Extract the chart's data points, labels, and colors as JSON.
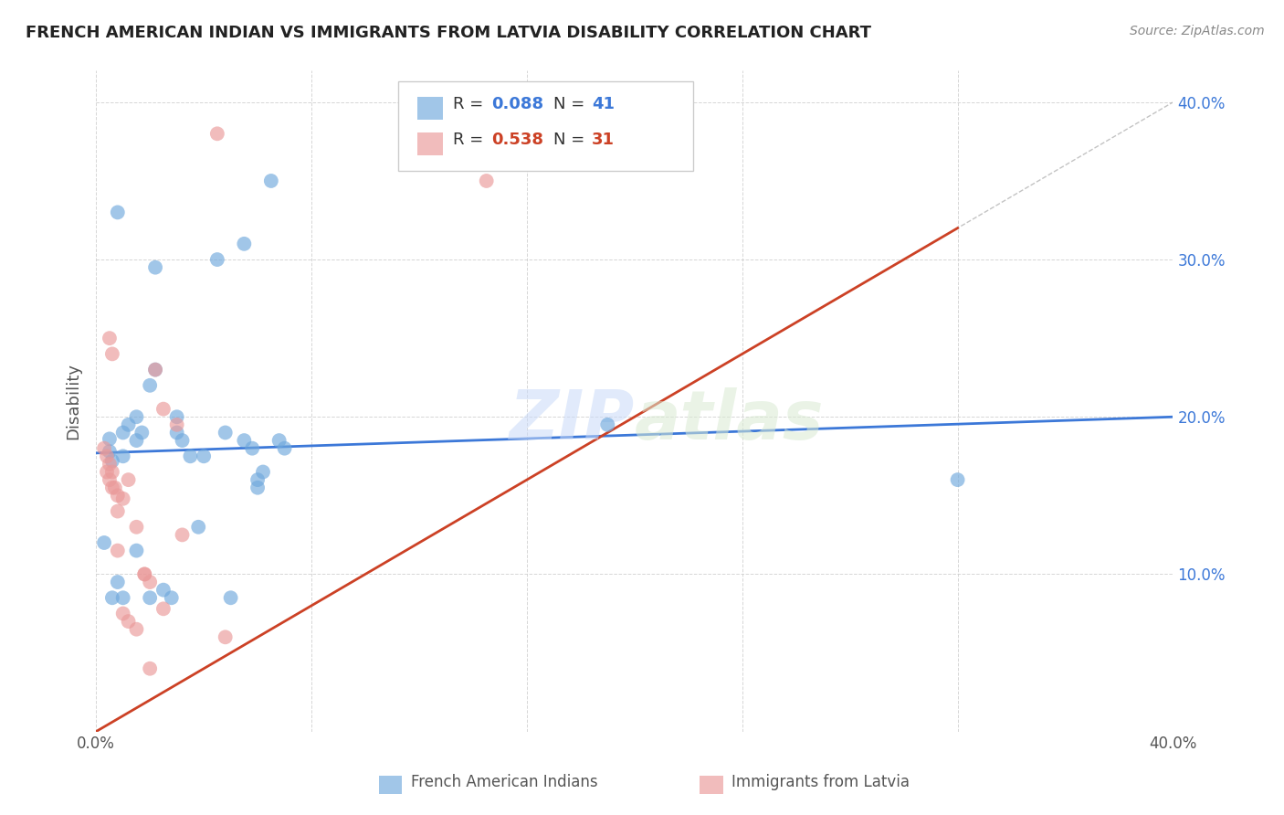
{
  "title": "FRENCH AMERICAN INDIAN VS IMMIGRANTS FROM LATVIA DISABILITY CORRELATION CHART",
  "source": "Source: ZipAtlas.com",
  "ylabel": "Disability",
  "xlim": [
    0.0,
    0.4
  ],
  "ylim": [
    0.0,
    0.42
  ],
  "background_color": "#ffffff",
  "legend_R1_val": "0.088",
  "legend_N1_val": "41",
  "legend_R2_val": "0.538",
  "legend_N2_val": "31",
  "legend_label1": "French American Indians",
  "legend_label2": "Immigrants from Latvia",
  "color_blue": "#6fa8dc",
  "color_pink": "#ea9999",
  "color_line_blue": "#3c78d8",
  "color_line_pink": "#cc4125",
  "color_line_diag": "#aaaaaa",
  "blue_points_x": [
    0.008,
    0.022,
    0.045,
    0.055,
    0.065,
    0.005,
    0.005,
    0.006,
    0.01,
    0.01,
    0.012,
    0.015,
    0.015,
    0.017,
    0.02,
    0.022,
    0.03,
    0.03,
    0.032,
    0.035,
    0.04,
    0.048,
    0.055,
    0.058,
    0.06,
    0.06,
    0.062,
    0.068,
    0.07,
    0.003,
    0.006,
    0.008,
    0.01,
    0.015,
    0.02,
    0.025,
    0.028,
    0.038,
    0.05,
    0.32,
    0.19
  ],
  "blue_points_y": [
    0.33,
    0.295,
    0.3,
    0.31,
    0.35,
    0.186,
    0.178,
    0.172,
    0.175,
    0.19,
    0.195,
    0.185,
    0.2,
    0.19,
    0.22,
    0.23,
    0.19,
    0.2,
    0.185,
    0.175,
    0.175,
    0.19,
    0.185,
    0.18,
    0.16,
    0.155,
    0.165,
    0.185,
    0.18,
    0.12,
    0.085,
    0.095,
    0.085,
    0.115,
    0.085,
    0.09,
    0.085,
    0.13,
    0.085,
    0.16,
    0.195
  ],
  "pink_points_x": [
    0.003,
    0.004,
    0.004,
    0.005,
    0.005,
    0.006,
    0.006,
    0.007,
    0.008,
    0.008,
    0.01,
    0.012,
    0.015,
    0.018,
    0.02,
    0.022,
    0.025,
    0.03,
    0.032,
    0.005,
    0.006,
    0.008,
    0.01,
    0.012,
    0.015,
    0.018,
    0.02,
    0.025,
    0.045,
    0.048,
    0.145
  ],
  "pink_points_y": [
    0.18,
    0.175,
    0.165,
    0.17,
    0.16,
    0.155,
    0.165,
    0.155,
    0.15,
    0.14,
    0.148,
    0.16,
    0.13,
    0.1,
    0.095,
    0.23,
    0.205,
    0.195,
    0.125,
    0.25,
    0.24,
    0.115,
    0.075,
    0.07,
    0.065,
    0.1,
    0.04,
    0.078,
    0.38,
    0.06,
    0.35
  ],
  "blue_line_x": [
    0.0,
    0.4
  ],
  "blue_line_y": [
    0.177,
    0.2
  ],
  "pink_line_x": [
    0.0,
    0.32
  ],
  "pink_line_y": [
    0.0,
    0.32
  ],
  "diag_line_x": [
    0.0,
    0.4
  ],
  "diag_line_y": [
    0.0,
    0.4
  ]
}
